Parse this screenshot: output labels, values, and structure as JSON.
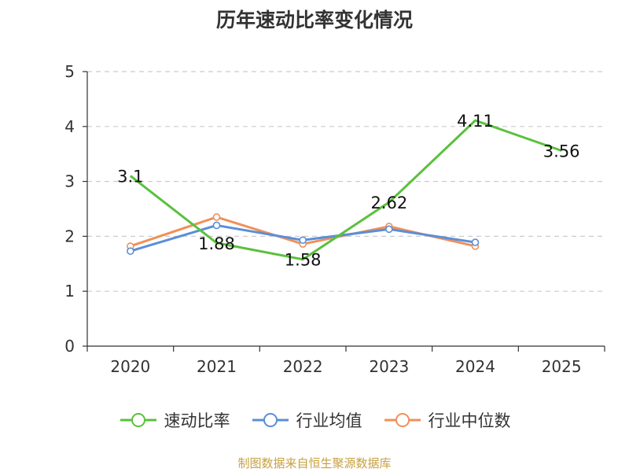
{
  "chart_data": {
    "type": "line",
    "title": "历年速动比率变化情况",
    "categories": [
      "2020",
      "2021",
      "2022",
      "2023",
      "2024",
      "2025"
    ],
    "ylim": [
      0,
      5
    ],
    "yticks": [
      0,
      1,
      2,
      3,
      4,
      5
    ],
    "grid": true,
    "legend_position": "bottom",
    "series": [
      {
        "name": "速动比率",
        "color": "#5ac13d",
        "values": [
          3.1,
          1.88,
          1.58,
          2.62,
          4.11,
          3.56
        ],
        "labels": [
          "3.1",
          "1.88",
          "1.58",
          "2.62",
          "4.11",
          "3.56"
        ]
      },
      {
        "name": "行业均值",
        "color": "#5b8ed8",
        "values": [
          1.73,
          2.2,
          1.93,
          2.13,
          1.89,
          null
        ]
      },
      {
        "name": "行业中位数",
        "color": "#f0905a",
        "values": [
          1.82,
          2.35,
          1.86,
          2.18,
          1.82,
          null
        ]
      }
    ]
  },
  "source": "制图数据来自恒生聚源数据库"
}
